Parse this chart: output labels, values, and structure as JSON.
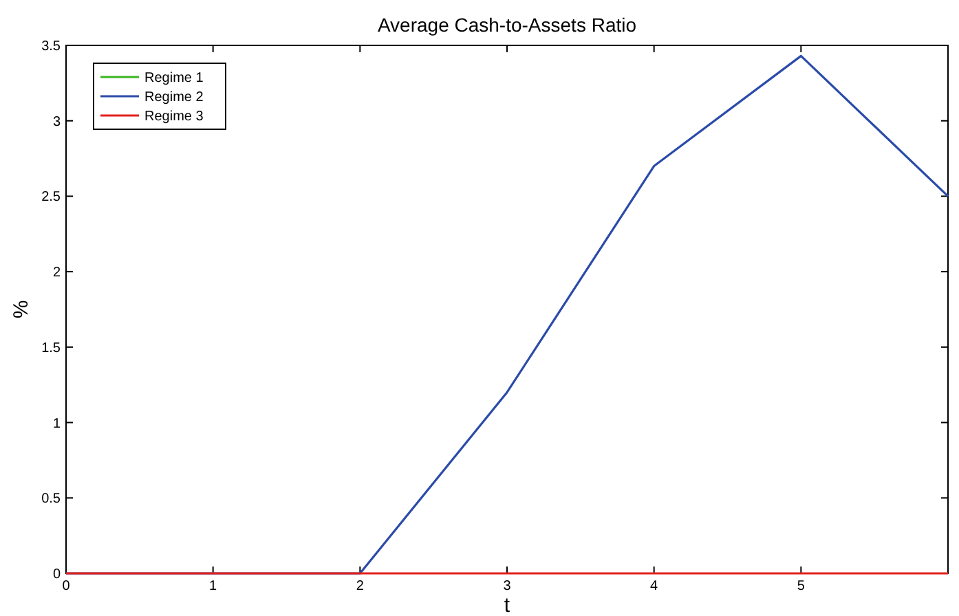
{
  "chart_data": {
    "type": "line",
    "title": "Average Cash-to-Assets Ratio",
    "xlabel": "t",
    "ylabel": "%",
    "x": [
      0,
      1,
      2,
      3,
      4,
      5,
      6
    ],
    "series": [
      {
        "name": "Regime 1",
        "color": "#3cb521",
        "values": [
          null,
          null,
          null,
          null,
          null,
          null,
          null
        ]
      },
      {
        "name": "Regime 2",
        "color": "#2b4ba8",
        "values": [
          0,
          0,
          0,
          1.2,
          2.7,
          3.43,
          2.5
        ]
      },
      {
        "name": "Regime 3",
        "color": "#e3211c",
        "values": [
          0,
          0,
          0,
          0,
          0,
          0,
          0
        ]
      }
    ],
    "xlim": [
      0,
      6
    ],
    "ylim": [
      0,
      3.5
    ],
    "xticks": [
      0,
      1,
      2,
      3,
      4,
      5,
      {
        "value": 6,
        "label": null
      }
    ],
    "yticks": [
      0,
      0.5,
      1,
      1.5,
      2,
      2.5,
      3,
      3.5
    ],
    "legend": "top left",
    "grid": false
  }
}
